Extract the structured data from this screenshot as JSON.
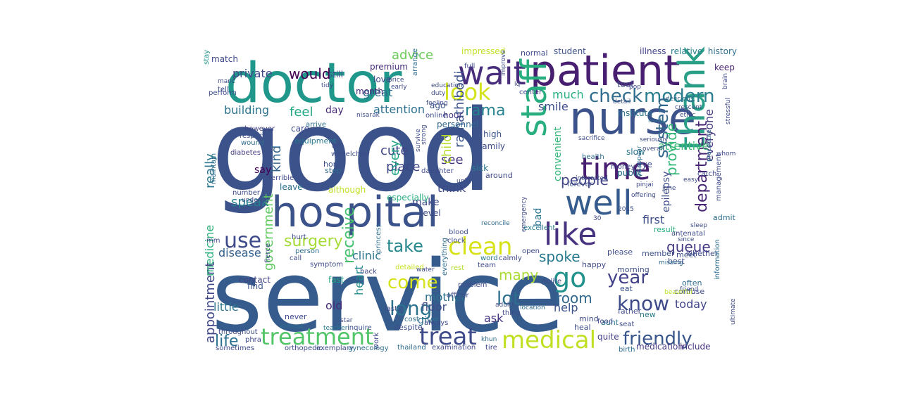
{
  "background_color": "#ffffff",
  "colormap": "viridis",
  "words": [
    {
      "text": "good",
      "color": "#3b528b"
    },
    {
      "text": "service",
      "color": "#365c8d"
    },
    {
      "text": "doctor",
      "color": "#1f988b"
    },
    {
      "text": "hospital",
      "color": "#3b528b"
    },
    {
      "text": "patient",
      "color": "#481f70"
    },
    {
      "text": "nurse",
      "color": "#3b528b"
    },
    {
      "text": "wait",
      "color": "#472d7b"
    },
    {
      "text": "staff",
      "color": "#29af7f"
    },
    {
      "text": "thank",
      "color": "#2a9f88"
    },
    {
      "text": "well",
      "color": "#365c8d"
    },
    {
      "text": "time",
      "color": "#481f70"
    },
    {
      "text": "like",
      "color": "#46327e"
    },
    {
      "text": "treatment",
      "color": "#52c569"
    },
    {
      "text": "treat",
      "color": "#3e4a89"
    },
    {
      "text": "medical",
      "color": "#c2df23"
    },
    {
      "text": "clean",
      "color": "#d8e219"
    },
    {
      "text": "look",
      "color": "#d2e21b"
    },
    {
      "text": "check",
      "color": "#2f6c8e"
    },
    {
      "text": "modern",
      "color": "#287d8e"
    },
    {
      "text": "system",
      "color": "#31688e"
    },
    {
      "text": "use",
      "color": "#3e4a89"
    },
    {
      "text": "go",
      "color": "#21918c"
    },
    {
      "text": "friendly",
      "color": "#39568c"
    },
    {
      "text": "know",
      "color": "#3e4989"
    },
    {
      "text": "long",
      "color": "#2c728e"
    },
    {
      "text": "come",
      "color": "#d5e21a"
    },
    {
      "text": "surgery",
      "color": "#a5db36"
    },
    {
      "text": "take",
      "color": "#24878e"
    },
    {
      "text": "rama",
      "color": "#26828e"
    },
    {
      "text": "lot",
      "color": "#2e6e8e"
    },
    {
      "text": "year",
      "color": "#424086"
    },
    {
      "text": "department",
      "color": "#482475"
    },
    {
      "text": "receive",
      "color": "#46c06f"
    },
    {
      "text": "government",
      "color": "#60ca60"
    },
    {
      "text": "appointment",
      "color": "#3f4788"
    },
    {
      "text": "provide",
      "color": "#35b779"
    },
    {
      "text": "ramathibodi",
      "color": "#3b528b"
    },
    {
      "text": "life",
      "color": "#2c718e"
    },
    {
      "text": "would",
      "color": "#440154"
    },
    {
      "text": "advice",
      "color": "#6ccd5a"
    },
    {
      "text": "people",
      "color": "#414487"
    },
    {
      "text": "queue",
      "color": "#443b84"
    },
    {
      "text": "spoke",
      "color": "#29798e"
    },
    {
      "text": "room",
      "color": "#31688e"
    },
    {
      "text": "many",
      "color": "#a8db34"
    },
    {
      "text": "feel",
      "color": "#22a884"
    },
    {
      "text": "really",
      "color": "#2a788e"
    },
    {
      "text": "kind",
      "color": "#32658e"
    },
    {
      "text": "cute",
      "color": "#404688"
    },
    {
      "text": "place",
      "color": "#3f4788"
    },
    {
      "text": "see",
      "color": "#46337f"
    },
    {
      "text": "every",
      "color": "#20a386"
    },
    {
      "text": "child",
      "color": "#b8de29"
    },
    {
      "text": "much",
      "color": "#29af7f"
    },
    {
      "text": "great",
      "color": "#2d708e"
    },
    {
      "text": "attention",
      "color": "#2d708e"
    },
    {
      "text": "private",
      "color": "#3e4989"
    },
    {
      "text": "building",
      "color": "#2c738e"
    },
    {
      "text": "everyone",
      "color": "#453781"
    },
    {
      "text": "attentive",
      "color": "#3dbc74"
    },
    {
      "text": "smile",
      "color": "#3d4d8a"
    },
    {
      "text": "convenient",
      "color": "#35b779"
    },
    {
      "text": "mother",
      "color": "#2c718e"
    },
    {
      "text": "speak",
      "color": "#26818e"
    },
    {
      "text": "little",
      "color": "#2a768e"
    },
    {
      "text": "say",
      "color": "#440154"
    },
    {
      "text": "think",
      "color": "#3e4a89"
    },
    {
      "text": "make",
      "color": "#3f4889"
    },
    {
      "text": "clinic",
      "color": "#2b758e"
    },
    {
      "text": "disease",
      "color": "#34608d"
    },
    {
      "text": "medicine",
      "color": "#2db27d"
    },
    {
      "text": "help",
      "color": "#3a538b"
    },
    {
      "text": "today",
      "color": "#404588"
    },
    {
      "text": "first",
      "color": "#3c4f8a"
    },
    {
      "text": "epilepsy",
      "color": "#3e4c8a"
    },
    {
      "text": "heart",
      "color": "#228c8d"
    },
    {
      "text": "old",
      "color": "#472c7a"
    },
    {
      "text": "floor",
      "color": "#3d4e8a"
    },
    {
      "text": "ask",
      "color": "#46327e"
    },
    {
      "text": "give",
      "color": "#2e6d8e"
    },
    {
      "text": "day",
      "color": "#472a7a"
    },
    {
      "text": "fast",
      "color": "#21a585"
    },
    {
      "text": "contact",
      "color": "#424086"
    },
    {
      "text": "find",
      "color": "#3a548c"
    },
    {
      "text": "quite",
      "color": "#433e85"
    },
    {
      "text": "medication",
      "color": "#443a83"
    },
    {
      "text": "include",
      "color": "#46307e"
    },
    {
      "text": "student",
      "color": "#3b518b"
    },
    {
      "text": "relative",
      "color": "#27808e"
    },
    {
      "text": "illness",
      "color": "#414487"
    },
    {
      "text": "history",
      "color": "#2e6e8e"
    },
    {
      "text": "keep",
      "color": "#482677"
    },
    {
      "text": "impressed",
      "color": "#c0df25"
    },
    {
      "text": "normal",
      "color": "#3e4a89"
    },
    {
      "text": "love",
      "color": "#3f4788"
    },
    {
      "text": "premium",
      "color": "#472d7b"
    },
    {
      "text": "still",
      "color": "#3e4c8a"
    },
    {
      "text": "month",
      "color": "#482878"
    },
    {
      "text": "ago",
      "color": "#3b528b"
    },
    {
      "text": "hour",
      "color": "#453882"
    },
    {
      "text": "personnel",
      "color": "#31688e"
    },
    {
      "text": "institute",
      "color": "#2c728e"
    },
    {
      "text": "tool",
      "color": "#3d4e8a"
    },
    {
      "text": "high",
      "color": "#39568c"
    },
    {
      "text": "family",
      "color": "#3e4989"
    },
    {
      "text": "bad",
      "color": "#2b758e"
    },
    {
      "text": "match",
      "color": "#3e4a89"
    },
    {
      "text": "stay",
      "color": "#21918c"
    },
    {
      "text": "perform",
      "color": "#3d4d8a"
    },
    {
      "text": "care",
      "color": "#3e4a89"
    },
    {
      "text": "equipment",
      "color": "#2a778e"
    },
    {
      "text": "however",
      "color": "#424186"
    },
    {
      "text": "respect",
      "color": "#3b528b"
    },
    {
      "text": "wound",
      "color": "#2f6c8e"
    },
    {
      "text": "diabetes",
      "color": "#433d84"
    },
    {
      "text": "maintain",
      "color": "#2f6b8e"
    },
    {
      "text": "number",
      "color": "#3e4a89"
    },
    {
      "text": "undergo",
      "color": "#3e4c8a"
    },
    {
      "text": "leave",
      "color": "#2d708e"
    },
    {
      "text": "although",
      "color": "#bddf26"
    },
    {
      "text": "especially",
      "color": "#2ab07f"
    },
    {
      "text": "level",
      "color": "#3e4c8a"
    },
    {
      "text": "step",
      "color": "#2f6b8e"
    },
    {
      "text": "home",
      "color": "#3b528b"
    },
    {
      "text": "never",
      "color": "#3e4a89"
    },
    {
      "text": "sick",
      "color": "#2a788e"
    },
    {
      "text": "around",
      "color": "#3f4889"
    },
    {
      "text": "public",
      "color": "#2f6c8e"
    },
    {
      "text": "eye",
      "color": "#3e4c8a"
    },
    {
      "text": "slow",
      "color": "#2b748e"
    },
    {
      "text": "public",
      "color": "#2f6c8e"
    },
    {
      "text": "result",
      "color": "#2ab07f"
    },
    {
      "text": "admit",
      "color": "#2e6e8e"
    },
    {
      "text": "whether",
      "color": "#3e4a89"
    },
    {
      "text": "please",
      "color": "#3e4c8a"
    },
    {
      "text": "member",
      "color": "#3b528b"
    },
    {
      "text": "best",
      "color": "#3f4788"
    },
    {
      "text": "meet",
      "color": "#3d4d8a"
    },
    {
      "text": "happy",
      "color": "#3e4a89"
    },
    {
      "text": "morning",
      "color": "#3e4c8a"
    },
    {
      "text": "often",
      "color": "#2f6b8e"
    },
    {
      "text": "confuse",
      "color": "#3e4a89"
    },
    {
      "text": "eat",
      "color": "#3b528b"
    },
    {
      "text": "father",
      "color": "#3e4a89"
    },
    {
      "text": "new",
      "color": "#2a788e"
    },
    {
      "text": "aunt",
      "color": "#2b748e"
    },
    {
      "text": "mind",
      "color": "#3e4a89"
    },
    {
      "text": "heal",
      "color": "#3e4c8a"
    },
    {
      "text": "seat",
      "color": "#3e4a89"
    },
    {
      "text": "birth",
      "color": "#2f6c8e"
    },
    {
      "text": "tire",
      "color": "#3f4889"
    },
    {
      "text": "examination",
      "color": "#3e4a89"
    },
    {
      "text": "thailand",
      "color": "#2f6b8e"
    },
    {
      "text": "work",
      "color": "#3e4a89"
    },
    {
      "text": "despite",
      "color": "#3e4c8a"
    },
    {
      "text": "cost",
      "color": "#2f6c8e"
    },
    {
      "text": "last",
      "color": "#3e4a89"
    },
    {
      "text": "teacher",
      "color": "#2a788e"
    },
    {
      "text": "star",
      "color": "#3e4a89"
    },
    {
      "text": "inquire",
      "color": "#3b528b"
    },
    {
      "text": "always",
      "color": "#3e4a89"
    },
    {
      "text": "thing",
      "color": "#3e4c8a"
    },
    {
      "text": "location",
      "color": "#2f6c8e"
    },
    {
      "text": "officer",
      "color": "#3e4a89"
    },
    {
      "text": "word",
      "color": "#2a788e"
    },
    {
      "text": "calmly",
      "color": "#3e4a89"
    },
    {
      "text": "rest",
      "color": "#b5de2b"
    },
    {
      "text": "open",
      "color": "#3e4a89"
    },
    {
      "text": "problem",
      "color": "#3e4c8a"
    },
    {
      "text": "team",
      "color": "#3e4a89"
    },
    {
      "text": "everything",
      "color": "#2f6c8e"
    },
    {
      "text": "clock",
      "color": "#3e4a89"
    },
    {
      "text": "blood",
      "color": "#3e4c8a"
    },
    {
      "text": "emergency",
      "color": "#3e4a89"
    },
    {
      "text": "excellent",
      "color": "#2a788e"
    },
    {
      "text": "money",
      "color": "#3e4a89"
    },
    {
      "text": "forever",
      "color": "#3e4c8a"
    },
    {
      "text": "health",
      "color": "#2f6c8e"
    },
    {
      "text": "orthopedic",
      "color": "#3e4a89"
    },
    {
      "text": "exemplary",
      "color": "#3e4c8a"
    },
    {
      "text": "gynecology",
      "color": "#2f6c8e"
    },
    {
      "text": "sometimes",
      "color": "#3e4a89"
    },
    {
      "text": "throughout",
      "color": "#3e4a89"
    },
    {
      "text": "almost",
      "color": "#2f6c8e"
    },
    {
      "text": "symptom",
      "color": "#3e4a89"
    },
    {
      "text": "call",
      "color": "#3e4c8a"
    },
    {
      "text": "person",
      "color": "#2f6c8e"
    },
    {
      "text": "hurt",
      "color": "#3e4a89"
    },
    {
      "text": "mm",
      "color": "#3e4a89"
    },
    {
      "text": "terrible",
      "color": "#3e4a89"
    },
    {
      "text": "bit",
      "color": "#3e4a89"
    },
    {
      "text": "wheelchair",
      "color": "#3e4c8a"
    },
    {
      "text": "arrive",
      "color": "#2f6c8e"
    },
    {
      "text": "tell",
      "color": "#3e4a89"
    },
    {
      "text": "manc",
      "color": "#3e4a89"
    },
    {
      "text": "tidy",
      "color": "#3e4a89"
    },
    {
      "text": "online",
      "color": "#3e4a89"
    },
    {
      "text": "center",
      "color": "#3e4c8a"
    },
    {
      "text": "princess",
      "color": "#2f6c8e"
    },
    {
      "text": "daughter",
      "color": "#3e4a89"
    },
    {
      "text": "unit",
      "color": "#3e4a89"
    },
    {
      "text": "antenatal",
      "color": "#3e4a89"
    },
    {
      "text": "management",
      "color": "#3e4c8a"
    },
    {
      "text": "information",
      "color": "#2f6c8e"
    },
    {
      "text": "2015",
      "color": "#3e4a89"
    },
    {
      "text": "30",
      "color": "#3e4a89"
    },
    {
      "text": "june",
      "color": "#3e4a89"
    },
    {
      "text": "friend",
      "color": "#3e4a89"
    },
    {
      "text": "sacrifice",
      "color": "#3e4c8a"
    },
    {
      "text": "procedure",
      "color": "#2f6c8e"
    },
    {
      "text": "stressful",
      "color": "#3e4a89"
    },
    {
      "text": "brain",
      "color": "#3e4a89"
    },
    {
      "text": "ethic",
      "color": "#3e4a89"
    },
    {
      "text": "crescent",
      "color": "#3e4c8a"
    },
    {
      "text": "delicious",
      "color": "#2f6c8e"
    },
    {
      "text": "seriously",
      "color": "#3e4a89"
    },
    {
      "text": "overall",
      "color": "#3e4a89"
    },
    {
      "text": "ultimate",
      "color": "#3e4a89"
    },
    {
      "text": "survive",
      "color": "#3e4a89"
    },
    {
      "text": "strong",
      "color": "#3e4c8a"
    },
    {
      "text": "reconcile",
      "color": "#2f6c8e"
    },
    {
      "text": "detailed",
      "color": "#c8e020"
    },
    {
      "text": "back",
      "color": "#3e4a89"
    },
    {
      "text": "water",
      "color": "#3e4a89"
    },
    {
      "text": "beautiful",
      "color": "#b8de29"
    },
    {
      "text": "food",
      "color": "#3e4a89"
    },
    {
      "text": "education",
      "color": "#3e4a89"
    },
    {
      "text": "duty",
      "color": "#3e4a89"
    },
    {
      "text": "feeling",
      "color": "#3e4c8a"
    },
    {
      "text": "arrange",
      "color": "#2f6c8e"
    },
    {
      "text": "price",
      "color": "#3e4a89"
    },
    {
      "text": "early",
      "color": "#3e4a89"
    },
    {
      "text": "full",
      "color": "#3e4a89"
    },
    {
      "text": "pop",
      "color": "#3e4a89"
    },
    {
      "text": "detail",
      "color": "#3e4c8a"
    },
    {
      "text": "lead",
      "color": "#2f6c8e"
    },
    {
      "text": "interested",
      "color": "#3e4a89"
    },
    {
      "text": "catch",
      "color": "#3e4a89"
    },
    {
      "text": "whom",
      "color": "#3e4a89"
    },
    {
      "text": "easy",
      "color": "#3e4a89"
    },
    {
      "text": "polite",
      "color": "#3e4c8a"
    },
    {
      "text": "khun",
      "color": "#2f6c8e"
    },
    {
      "text": "adult",
      "color": "#3e4a89"
    },
    {
      "text": "phra",
      "color": "#3e4a89"
    },
    {
      "text": "fierce",
      "color": "#3e4a89"
    },
    {
      "text": "sleep",
      "color": "#3e4a89"
    },
    {
      "text": "since",
      "color": "#3e4c8a"
    },
    {
      "text": "missing",
      "color": "#2f6c8e"
    },
    {
      "text": "offering",
      "color": "#3e4a89"
    },
    {
      "text": "pinjai",
      "color": "#3e4a89"
    },
    {
      "text": "iq",
      "color": "#3e4a89"
    },
    {
      "text": "improve",
      "color": "#3e4a89"
    },
    {
      "text": "nisarak",
      "color": "#3e4c8a"
    },
    {
      "text": "disappear",
      "color": "#2f6c8e"
    }
  ]
}
